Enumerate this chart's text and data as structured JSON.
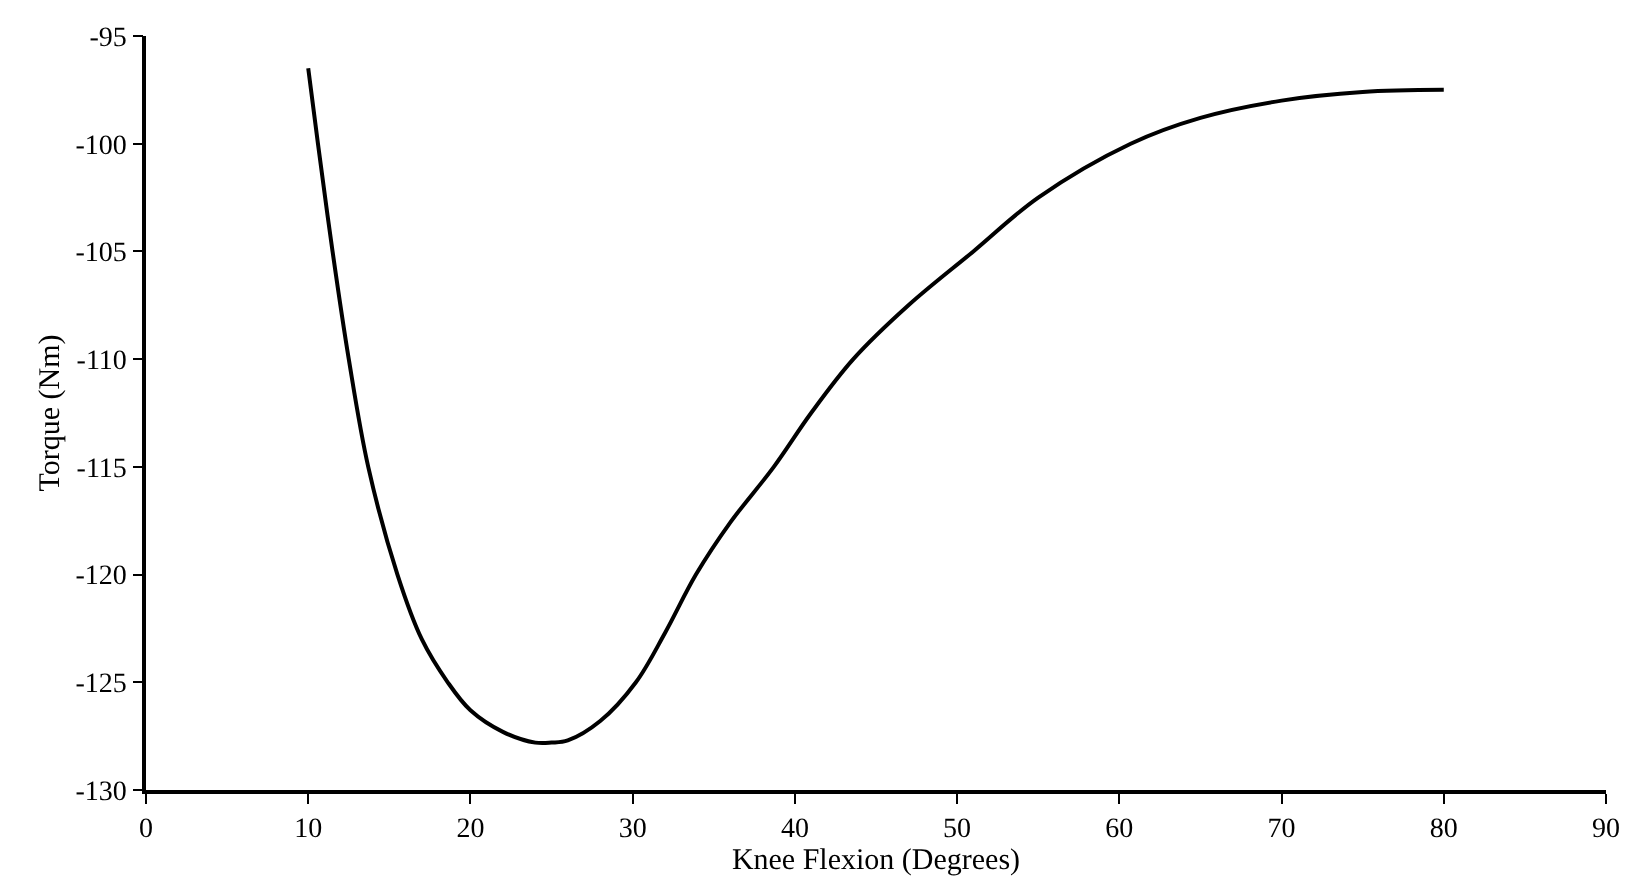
{
  "chart_data": {
    "type": "line",
    "xlabel": "Knee Flexion (Degrees)",
    "ylabel": "Torque (Nm)",
    "x": [
      10,
      10.6,
      11.5,
      12.5,
      13.7,
      15.5,
      17,
      18.6,
      20,
      22,
      24,
      25,
      26,
      28,
      30.2,
      32,
      33.9,
      36,
      38.7,
      41,
      43.6,
      47,
      51,
      55,
      60.7,
      65,
      70,
      75,
      80
    ],
    "series": [
      {
        "color": "#000000",
        "values": [
          -96.5,
          -100,
          -105,
          -110,
          -115,
          -120,
          -123,
          -125,
          -126.3,
          -127.3,
          -127.8,
          -127.8,
          -127.7,
          -126.8,
          -125,
          -122.7,
          -120,
          -117.6,
          -115,
          -112.5,
          -110,
          -107.5,
          -105,
          -102.5,
          -100,
          -98.8,
          -98,
          -97.6,
          -97.5
        ]
      }
    ],
    "xlim": [
      0,
      90
    ],
    "xticks": [
      0,
      10,
      20,
      30,
      40,
      50,
      60,
      70,
      80,
      90
    ],
    "ylim": [
      -130,
      -95
    ],
    "yticks": [
      -130,
      -125,
      -120,
      -115,
      -110,
      -105,
      -100,
      -95
    ],
    "legend": false,
    "marker": "none",
    "line_style": "solid"
  }
}
